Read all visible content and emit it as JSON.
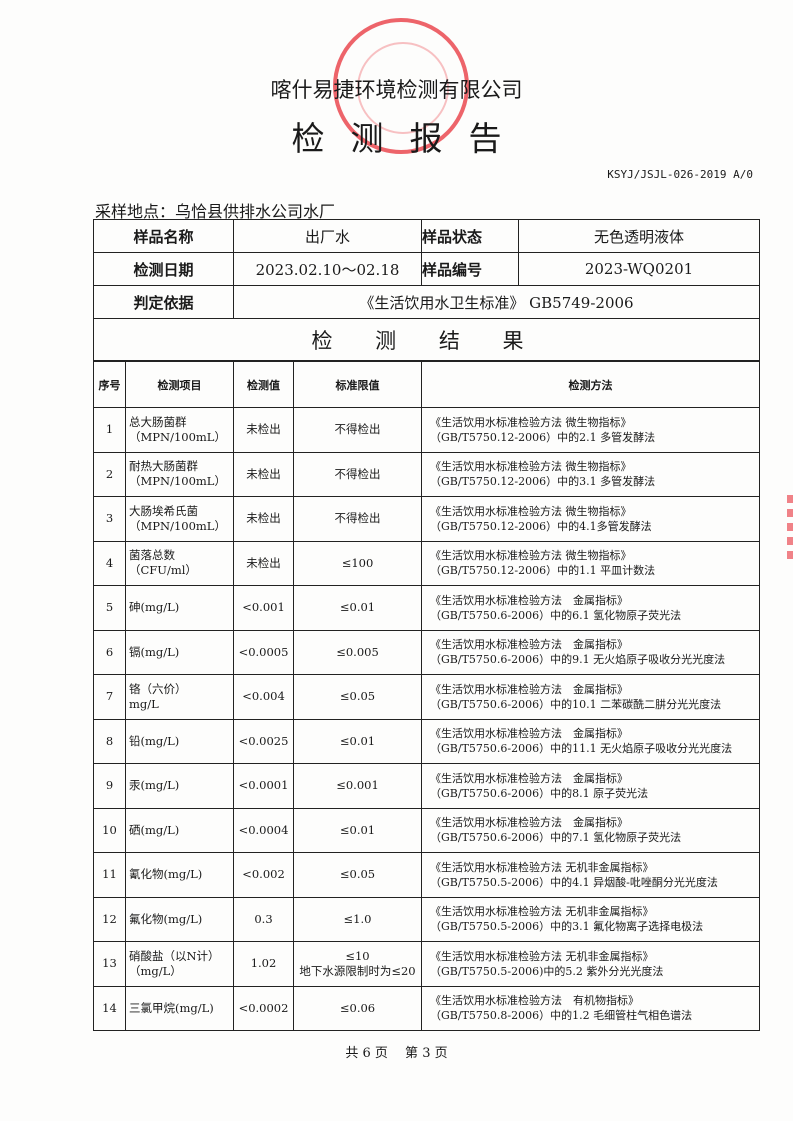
{
  "header": {
    "company": "喀什易捷环境检测有限公司",
    "title": "检测报告",
    "doc_code": "KSYJ/JSJL-026-2019  A/0",
    "location": "采样地点：乌恰县供排水公司水厂",
    "seal_color": "#e8313a"
  },
  "info": {
    "sample_name_label": "样品名称",
    "sample_name": "出厂水",
    "sample_state_label": "样品状态",
    "sample_state": "无色透明液体",
    "test_date_label": "检测日期",
    "test_date": "2023.02.10～02.18",
    "sample_no_label": "样品编号",
    "sample_no": "2023-WQ0201",
    "basis_label": "判定依据",
    "basis": "《生活饮用水卫生标准》 GB5749-2006",
    "results_title": "检 测 结 果"
  },
  "columns": [
    "序号",
    "检测项目",
    "检测值",
    "标准限值",
    "检测方法"
  ],
  "rows": [
    {
      "no": "1",
      "item": "总大肠菌群",
      "unit": "（MPN/100mL）",
      "value": "未检出",
      "limit": "不得检出",
      "limit2": "",
      "m1": "《生活饮用水标准检验方法 微生物指标》",
      "m2": "（GB/T5750.12-2006）中的2.1 多管发酵法"
    },
    {
      "no": "2",
      "item": "耐热大肠菌群",
      "unit": "（MPN/100mL）",
      "value": "未检出",
      "limit": "不得检出",
      "limit2": "",
      "m1": "《生活饮用水标准检验方法 微生物指标》",
      "m2": "（GB/T5750.12-2006）中的3.1 多管发酵法"
    },
    {
      "no": "3",
      "item": "大肠埃希氏菌",
      "unit": "（MPN/100mL）",
      "value": "未检出",
      "limit": "不得检出",
      "limit2": "",
      "m1": "《生活饮用水标准检验方法 微生物指标》",
      "m2": "（GB/T5750.12-2006）中的4.1多管发酵法"
    },
    {
      "no": "4",
      "item": "菌落总数",
      "unit": "（CFU/ml）",
      "value": "未检出",
      "limit": "≤100",
      "limit2": "",
      "m1": "《生活饮用水标准检验方法 微生物指标》",
      "m2": "（GB/T5750.12-2006）中的1.1 平皿计数法"
    },
    {
      "no": "5",
      "item": "砷(mg/L)",
      "unit": "",
      "value": "<0.001",
      "limit": "≤0.01",
      "limit2": "",
      "m1": "《生活饮用水标准检验方法　金属指标》",
      "m2": "（GB/T5750.6-2006）中的6.1 氢化物原子荧光法"
    },
    {
      "no": "6",
      "item": "镉(mg/L)",
      "unit": "",
      "value": "<0.0005",
      "limit": "≤0.005",
      "limit2": "",
      "m1": "《生活饮用水标准检验方法　金属指标》",
      "m2": "（GB/T5750.6-2006）中的9.1 无火焰原子吸收分光光度法"
    },
    {
      "no": "7",
      "item": "铬（六价）",
      "unit": "mg/L",
      "value": "<0.004",
      "limit": "≤0.05",
      "limit2": "",
      "m1": "《生活饮用水标准检验方法　金属指标》",
      "m2": "（GB/T5750.6-2006）中的10.1 二苯碳酰二肼分光光度法"
    },
    {
      "no": "8",
      "item": "铅(mg/L)",
      "unit": "",
      "value": "<0.0025",
      "limit": "≤0.01",
      "limit2": "",
      "m1": "《生活饮用水标准检验方法　金属指标》",
      "m2": "（GB/T5750.6-2006）中的11.1 无火焰原子吸收分光光度法"
    },
    {
      "no": "9",
      "item": "汞(mg/L)",
      "unit": "",
      "value": "<0.0001",
      "limit": "≤0.001",
      "limit2": "",
      "m1": "《生活饮用水标准检验方法　金属指标》",
      "m2": "（GB/T5750.6-2006）中的8.1 原子荧光法"
    },
    {
      "no": "10",
      "item": "硒(mg/L)",
      "unit": "",
      "value": "<0.0004",
      "limit": "≤0.01",
      "limit2": "",
      "m1": "《生活饮用水标准检验方法　金属指标》",
      "m2": "（GB/T5750.6-2006）中的7.1 氢化物原子荧光法"
    },
    {
      "no": "11",
      "item": "氰化物(mg/L)",
      "unit": "",
      "value": "<0.002",
      "limit": "≤0.05",
      "limit2": "",
      "m1": "《生活饮用水标准检验方法 无机非金属指标》",
      "m2": "（GB/T5750.5-2006）中的4.1 异烟酸-吡唑酮分光光度法"
    },
    {
      "no": "12",
      "item": "氟化物(mg/L)",
      "unit": "",
      "value": "0.3",
      "limit": "≤1.0",
      "limit2": "",
      "m1": "《生活饮用水标准检验方法 无机非金属指标》",
      "m2": "（GB/T5750.5-2006）中的3.1 氟化物离子选择电极法"
    },
    {
      "no": "13",
      "item": "硝酸盐（以N计）",
      "unit": "（mg/L）",
      "value": "1.02",
      "limit": "≤10",
      "limit2": "地下水源限制时为≤20",
      "m1": "《生活饮用水标准检验方法 无机非金属指标》",
      "m2": "（GB/T5750.5-2006)中的5.2 紫外分光光度法"
    },
    {
      "no": "14",
      "item": "三氯甲烷(mg/L)",
      "unit": "",
      "value": "<0.0002",
      "limit": "≤0.06",
      "limit2": "",
      "m1": "《生活饮用水标准检验方法　有机物指标》",
      "m2": "（GB/T5750.8-2006）中的1.2 毛细管柱气相色谱法"
    }
  ],
  "footer": "共 6 页　 第 3 页"
}
